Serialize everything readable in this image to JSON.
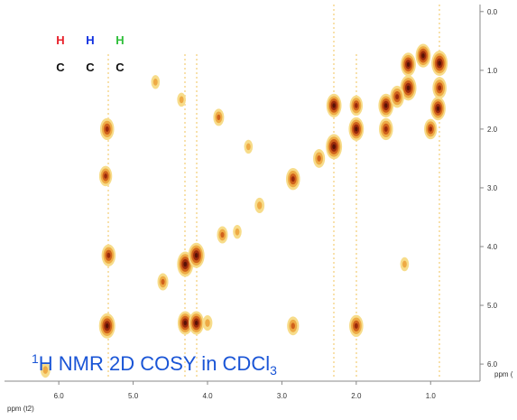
{
  "chart_data": {
    "type": "contour-peaks",
    "annotation": {
      "superscript": "1",
      "main": "H NMR 2D COSY in CDCl",
      "subscript": "3"
    },
    "legend_atoms": [
      {
        "label": "H",
        "color": "#e8202a",
        "bond": "C"
      },
      {
        "label": "H",
        "color": "#1030e0",
        "bond": "C"
      },
      {
        "label": "H",
        "color": "#2fbf3a",
        "bond": "C"
      }
    ],
    "xlabel": "ppm (t2)",
    "ylabel": "ppm (",
    "xlim": [
      6.73,
      0.36
    ],
    "ylim": [
      -0.12,
      6.26
    ],
    "xticks": [
      {
        "value": 6,
        "label": "6.0"
      },
      {
        "value": 5,
        "label": "5.0"
      },
      {
        "value": 4,
        "label": "4.0"
      },
      {
        "value": 3,
        "label": "3.0"
      },
      {
        "value": 2,
        "label": "2.0"
      },
      {
        "value": 1,
        "label": "1.0"
      }
    ],
    "yticks": [
      {
        "value": 0,
        "label": "0.0"
      },
      {
        "value": 1,
        "label": "1.0"
      },
      {
        "value": 2,
        "label": "2.0"
      },
      {
        "value": 3,
        "label": "3.0"
      },
      {
        "value": 4,
        "label": "4.0"
      },
      {
        "value": 5,
        "label": "5.0"
      },
      {
        "value": 6,
        "label": "6.0"
      }
    ],
    "x": [
      5.35,
      5.35,
      5.37,
      5.33,
      4.3,
      4.15,
      4.3,
      4.15,
      4.0,
      2.85,
      2.85,
      2.0,
      2.3,
      2.3,
      2.0,
      1.6,
      1.3,
      0.88,
      1.3,
      0.88,
      1.6,
      2.0,
      3.85,
      4.7,
      3.45,
      3.3,
      3.8,
      2.5,
      4.6,
      6.18,
      1.1,
      1.45,
      0.9,
      1.0,
      3.6,
      4.35,
      1.35
    ],
    "values": [
      5.35,
      2.0,
      2.8,
      4.15,
      4.3,
      4.15,
      5.3,
      5.3,
      5.3,
      2.85,
      5.35,
      5.35,
      2.3,
      1.6,
      2.0,
      1.6,
      1.3,
      0.88,
      0.9,
      1.3,
      2.0,
      1.6,
      1.8,
      1.2,
      2.3,
      3.3,
      3.8,
      2.5,
      4.6,
      6.1,
      0.75,
      1.45,
      1.65,
      2.0,
      3.75,
      1.5,
      4.3
    ],
    "intensity": [
      1.0,
      0.8,
      0.7,
      0.8,
      1.0,
      1.0,
      0.9,
      0.9,
      0.4,
      0.8,
      0.6,
      0.8,
      1.0,
      0.9,
      0.9,
      0.9,
      1.0,
      1.0,
      0.9,
      0.8,
      0.8,
      0.7,
      0.5,
      0.3,
      0.3,
      0.4,
      0.5,
      0.6,
      0.5,
      0.4,
      0.9,
      0.8,
      0.9,
      0.7,
      0.3,
      0.3,
      0.3
    ]
  }
}
